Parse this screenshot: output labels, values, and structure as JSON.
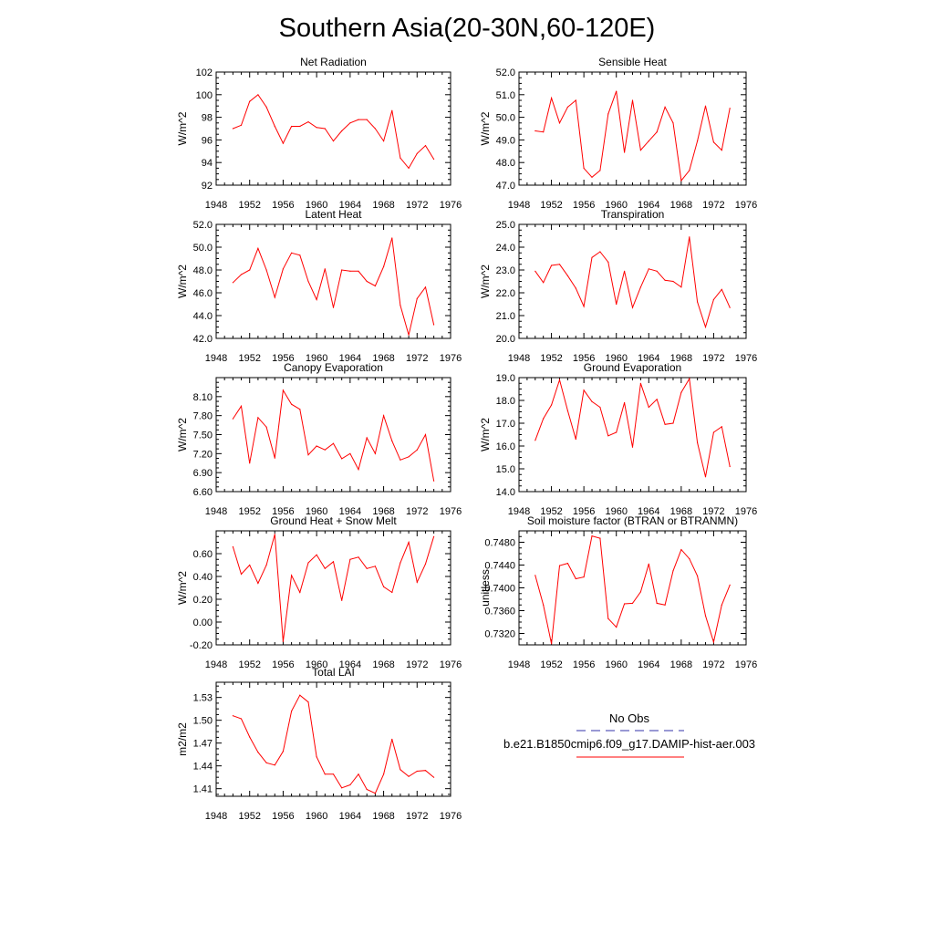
{
  "page_title": "Southern Asia(20-30N,60-120E)",
  "series_color": "#ff0000",
  "legend": {
    "title": "No Obs",
    "obs_color": "#3333aa",
    "case_label": "b.e21.B1850cmip6.f09_g17.DAMIP-hist-aer.003",
    "case_color": "#ff0000"
  },
  "chart_data": [
    {
      "type": "line",
      "title": "Net Radiation",
      "ylabel": "W/m^2",
      "xlim": [
        1948,
        1976
      ],
      "ylim": [
        92,
        102
      ],
      "xticks": [
        "1948",
        "1952",
        "1956",
        "1960",
        "1964",
        "1968",
        "1972",
        "1976"
      ],
      "yticks": [
        "92",
        "94",
        "96",
        "98",
        "100",
        "102"
      ],
      "x": [
        1950,
        1951,
        1952,
        1953,
        1954,
        1955,
        1956,
        1957,
        1958,
        1959,
        1960,
        1961,
        1962,
        1963,
        1964,
        1965,
        1966,
        1967,
        1968,
        1969,
        1970,
        1971,
        1972,
        1973,
        1974
      ],
      "values": [
        97.0,
        97.3,
        99.4,
        100.0,
        98.9,
        97.2,
        95.7,
        97.2,
        97.2,
        97.6,
        97.1,
        97.0,
        95.9,
        96.8,
        97.5,
        97.8,
        97.8,
        97.0,
        95.9,
        98.6,
        94.4,
        93.5,
        94.8,
        95.5,
        94.3
      ]
    },
    {
      "type": "line",
      "title": "Sensible Heat",
      "ylabel": "W/m^2",
      "xlim": [
        1948,
        1976
      ],
      "ylim": [
        47,
        52
      ],
      "xticks": [
        "1948",
        "1952",
        "1956",
        "1960",
        "1964",
        "1968",
        "1972",
        "1976"
      ],
      "yticks": [
        "47.0",
        "48.0",
        "49.0",
        "50.0",
        "51.0",
        "52.0"
      ],
      "x": [
        1950,
        1951,
        1952,
        1953,
        1954,
        1955,
        1956,
        1957,
        1958,
        1959,
        1960,
        1961,
        1962,
        1963,
        1964,
        1965,
        1966,
        1967,
        1968,
        1969,
        1970,
        1971,
        1972,
        1973,
        1974
      ],
      "values": [
        49.4,
        49.35,
        50.85,
        49.75,
        50.45,
        50.75,
        47.75,
        47.35,
        47.65,
        50.15,
        51.15,
        48.45,
        50.75,
        48.55,
        48.95,
        49.35,
        50.45,
        49.75,
        47.2,
        47.65,
        48.95,
        50.5,
        48.9,
        48.55,
        50.4
      ]
    },
    {
      "type": "line",
      "title": "Latent Heat",
      "ylabel": "W/m^2",
      "xlim": [
        1948,
        1976
      ],
      "ylim": [
        42,
        52
      ],
      "xticks": [
        "1948",
        "1952",
        "1956",
        "1960",
        "1964",
        "1968",
        "1972",
        "1976"
      ],
      "yticks": [
        "42.0",
        "44.0",
        "46.0",
        "48.0",
        "50.0",
        "52.0"
      ],
      "x": [
        1950,
        1951,
        1952,
        1953,
        1954,
        1955,
        1956,
        1957,
        1958,
        1959,
        1960,
        1961,
        1962,
        1963,
        1964,
        1965,
        1966,
        1967,
        1968,
        1969,
        1970,
        1971,
        1972,
        1973,
        1974
      ],
      "values": [
        46.9,
        47.6,
        48.0,
        49.9,
        48.0,
        45.6,
        48.1,
        49.5,
        49.3,
        47.0,
        45.4,
        48.1,
        44.7,
        48.0,
        47.9,
        47.9,
        47.0,
        46.6,
        48.3,
        50.8,
        44.9,
        42.3,
        45.5,
        46.5,
        43.2
      ]
    },
    {
      "type": "line",
      "title": "Transpiration",
      "ylabel": "W/m^2",
      "xlim": [
        1948,
        1976
      ],
      "ylim": [
        20,
        25
      ],
      "xticks": [
        "1948",
        "1952",
        "1956",
        "1960",
        "1964",
        "1968",
        "1972",
        "1976"
      ],
      "yticks": [
        "20.0",
        "21.0",
        "22.0",
        "23.0",
        "24.0",
        "25.0"
      ],
      "x": [
        1950,
        1951,
        1952,
        1953,
        1954,
        1955,
        1956,
        1957,
        1958,
        1959,
        1960,
        1961,
        1962,
        1963,
        1964,
        1965,
        1966,
        1967,
        1968,
        1969,
        1970,
        1971,
        1972,
        1973,
        1974
      ],
      "values": [
        22.95,
        22.45,
        23.2,
        23.25,
        22.75,
        22.2,
        21.4,
        23.55,
        23.8,
        23.35,
        21.5,
        22.95,
        21.35,
        22.25,
        23.05,
        22.95,
        22.55,
        22.5,
        22.25,
        24.45,
        21.6,
        20.5,
        21.7,
        22.15,
        21.35
      ]
    },
    {
      "type": "line",
      "title": "Canopy Evaporation",
      "ylabel": "W/m^2",
      "xlim": [
        1948,
        1976
      ],
      "ylim": [
        6.6,
        8.4
      ],
      "xticks": [
        "1948",
        "1952",
        "1956",
        "1960",
        "1964",
        "1968",
        "1972",
        "1976"
      ],
      "yticks": [
        "6.60",
        "6.90",
        "7.20",
        "7.50",
        "7.80",
        "8.10"
      ],
      "x": [
        1950,
        1951,
        1952,
        1953,
        1954,
        1955,
        1956,
        1957,
        1958,
        1959,
        1960,
        1961,
        1962,
        1963,
        1964,
        1965,
        1966,
        1967,
        1968,
        1969,
        1970,
        1971,
        1972,
        1973,
        1974
      ],
      "values": [
        7.75,
        7.95,
        7.05,
        7.77,
        7.62,
        7.13,
        8.2,
        7.98,
        7.9,
        7.18,
        7.32,
        7.26,
        7.36,
        7.12,
        7.2,
        6.95,
        7.45,
        7.2,
        7.8,
        7.4,
        7.1,
        7.15,
        7.26,
        7.5,
        6.77
      ]
    },
    {
      "type": "line",
      "title": "Ground Evaporation",
      "ylabel": "W/m^2",
      "xlim": [
        1948,
        1976
      ],
      "ylim": [
        14,
        19
      ],
      "xticks": [
        "1948",
        "1952",
        "1956",
        "1960",
        "1964",
        "1968",
        "1972",
        "1976"
      ],
      "yticks": [
        "14.0",
        "15.0",
        "16.0",
        "17.0",
        "18.0",
        "19.0"
      ],
      "x": [
        1950,
        1951,
        1952,
        1953,
        1954,
        1955,
        1956,
        1957,
        1958,
        1959,
        1960,
        1961,
        1962,
        1963,
        1964,
        1965,
        1966,
        1967,
        1968,
        1969,
        1970,
        1971,
        1972,
        1973,
        1974
      ],
      "values": [
        16.25,
        17.2,
        17.8,
        18.9,
        17.55,
        16.3,
        18.45,
        17.95,
        17.7,
        16.45,
        16.6,
        17.9,
        15.95,
        18.75,
        17.7,
        18.05,
        16.95,
        17.0,
        18.35,
        18.95,
        16.15,
        14.65,
        16.6,
        16.85,
        15.1
      ]
    },
    {
      "type": "line",
      "title": "Ground Heat + Snow Melt",
      "ylabel": "W/m^2",
      "xlim": [
        1948,
        1976
      ],
      "ylim": [
        -0.2,
        0.8
      ],
      "xticks": [
        "1948",
        "1952",
        "1956",
        "1960",
        "1964",
        "1968",
        "1972",
        "1976"
      ],
      "yticks": [
        "-0.20",
        "0.00",
        "0.20",
        "0.40",
        "0.60"
      ],
      "x": [
        1950,
        1951,
        1952,
        1953,
        1954,
        1955,
        1956,
        1957,
        1958,
        1959,
        1960,
        1961,
        1962,
        1963,
        1964,
        1965,
        1966,
        1967,
        1968,
        1969,
        1970,
        1971,
        1972,
        1973,
        1974
      ],
      "values": [
        0.66,
        0.42,
        0.5,
        0.34,
        0.5,
        0.77,
        -0.17,
        0.41,
        0.26,
        0.52,
        0.59,
        0.47,
        0.53,
        0.19,
        0.55,
        0.57,
        0.47,
        0.49,
        0.31,
        0.26,
        0.52,
        0.7,
        0.35,
        0.51,
        0.75
      ]
    },
    {
      "type": "line",
      "title": "Soil moisture factor (BTRAN or BTRANMN)",
      "ylabel": "unitless",
      "xlim": [
        1948,
        1976
      ],
      "ylim": [
        0.73,
        0.75
      ],
      "xticks": [
        "1948",
        "1952",
        "1956",
        "1960",
        "1964",
        "1968",
        "1972",
        "1976"
      ],
      "yticks": [
        "0.7320",
        "0.7360",
        "0.7400",
        "0.7440",
        "0.7480"
      ],
      "x": [
        1950,
        1951,
        1952,
        1953,
        1954,
        1955,
        1956,
        1957,
        1958,
        1959,
        1960,
        1961,
        1962,
        1963,
        1964,
        1965,
        1966,
        1967,
        1968,
        1969,
        1970,
        1971,
        1972,
        1973,
        1974
      ],
      "values": [
        0.7422,
        0.737,
        0.7302,
        0.7439,
        0.7443,
        0.7416,
        0.7419,
        0.7491,
        0.7487,
        0.7346,
        0.7331,
        0.7372,
        0.7373,
        0.7393,
        0.7442,
        0.7373,
        0.737,
        0.743,
        0.7467,
        0.7451,
        0.7421,
        0.7351,
        0.7305,
        0.737,
        0.7405
      ]
    },
    {
      "type": "line",
      "title": "Total LAI",
      "ylabel": "m2/m2",
      "xlim": [
        1948,
        1976
      ],
      "ylim": [
        1.4,
        1.55
      ],
      "xticks": [
        "1948",
        "1952",
        "1956",
        "1960",
        "1964",
        "1968",
        "1972",
        "1976"
      ],
      "yticks": [
        "1.41",
        "1.44",
        "1.47",
        "1.50",
        "1.53"
      ],
      "x": [
        1950,
        1951,
        1952,
        1953,
        1954,
        1955,
        1956,
        1957,
        1958,
        1959,
        1960,
        1961,
        1962,
        1963,
        1964,
        1965,
        1966,
        1967,
        1968,
        1969,
        1970,
        1971,
        1972,
        1973,
        1974
      ],
      "values": [
        1.506,
        1.502,
        1.478,
        1.458,
        1.444,
        1.441,
        1.459,
        1.512,
        1.533,
        1.524,
        1.452,
        1.429,
        1.429,
        1.411,
        1.415,
        1.429,
        1.409,
        1.404,
        1.429,
        1.475,
        1.435,
        1.426,
        1.433,
        1.434,
        1.425
      ]
    }
  ]
}
